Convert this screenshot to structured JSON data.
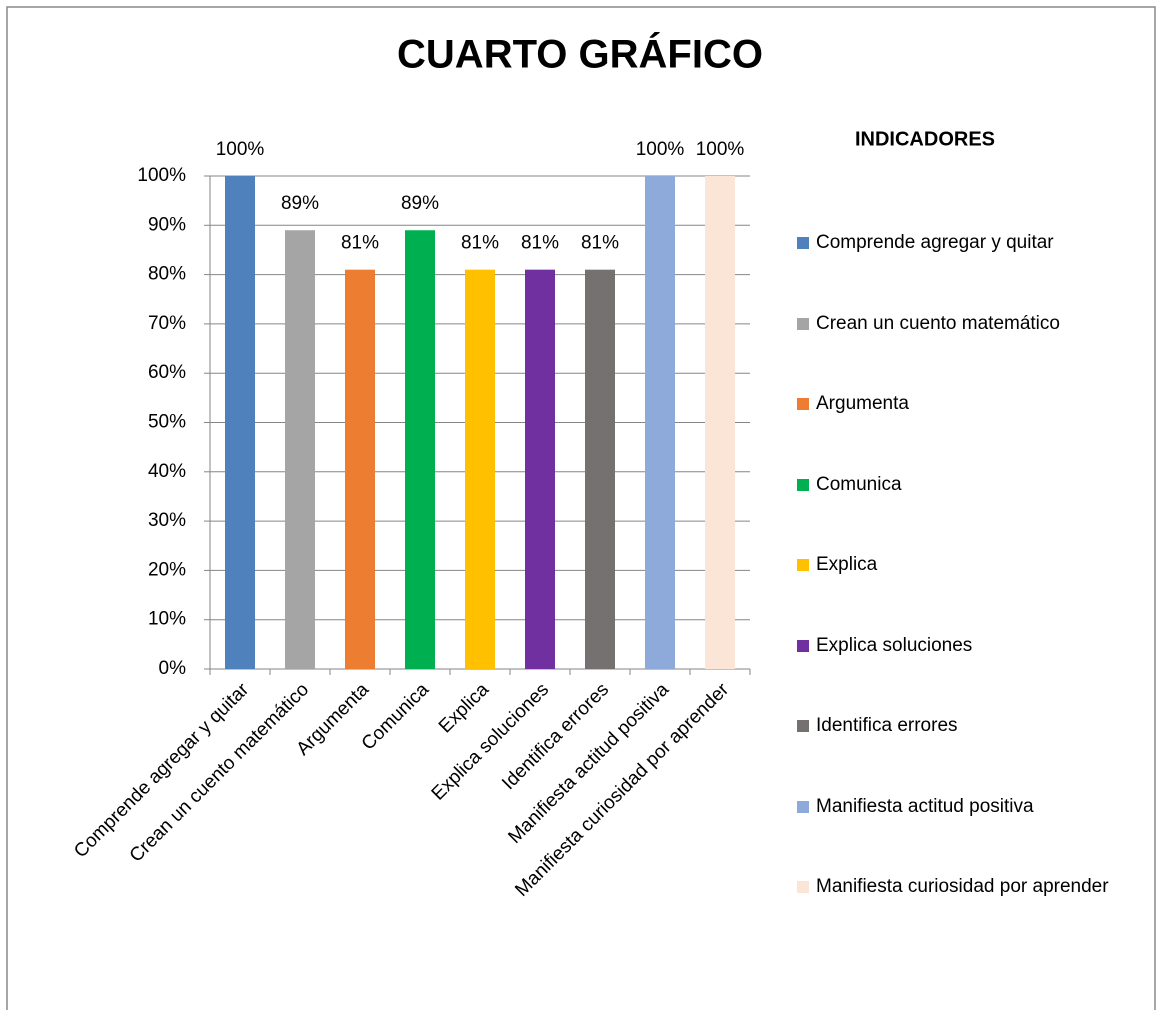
{
  "chart_data": {
    "type": "bar",
    "title": "CUARTO GRÁFICO",
    "categories": [
      "Comprende agregar y quitar",
      "Crean un cuento matemático",
      "Argumenta",
      "Comunica",
      "Explica",
      "Explica soluciones",
      "Identifica errores",
      "Manifiesta actitud positiva",
      "Manifiesta curiosidad por aprender"
    ],
    "values": [
      100,
      89,
      81,
      89,
      81,
      81,
      81,
      100,
      100
    ],
    "value_labels": [
      "100%",
      "89%",
      "81%",
      "89%",
      "81%",
      "81%",
      "81%",
      "100%",
      "100%"
    ],
    "colors": [
      "#4f81bd",
      "#a5a5a5",
      "#ed7d31",
      "#00b050",
      "#ffc000",
      "#7030a0",
      "#767171",
      "#8eaadb",
      "#fbe5d6"
    ],
    "ylim": [
      0,
      100
    ],
    "yticks": [
      {
        "value": 0,
        "label": "0%"
      },
      {
        "value": 10,
        "label": "10%"
      },
      {
        "value": 20,
        "label": "20%"
      },
      {
        "value": 30,
        "label": "30%"
      },
      {
        "value": 40,
        "label": "40%"
      },
      {
        "value": 50,
        "label": "50%"
      },
      {
        "value": 60,
        "label": "60%"
      },
      {
        "value": 70,
        "label": "70%"
      },
      {
        "value": 80,
        "label": "80%"
      },
      {
        "value": 90,
        "label": "90%"
      },
      {
        "value": 100,
        "label": "100%"
      }
    ],
    "grid": true,
    "legend_title": "INDICADORES",
    "legend_position": "right"
  }
}
